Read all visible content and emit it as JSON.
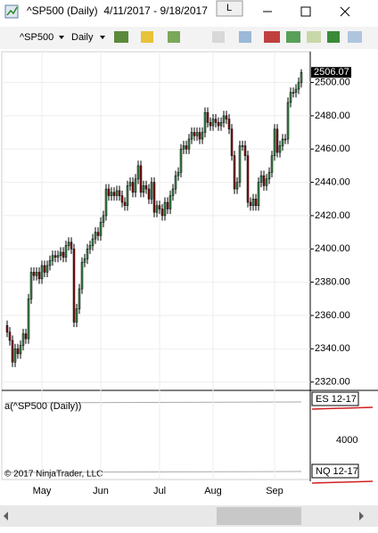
{
  "window": {
    "title": "^SP500 (Daily)  4/11/2017 - 9/18/2017",
    "link_button": "L"
  },
  "toolbar": {
    "instrument": "^SP500",
    "period": "Daily"
  },
  "lower_panel": {
    "indicator_label": "a(^SP500 (Daily))",
    "top_series": "ES 12-17",
    "bottom_series": "NQ 12-17",
    "yticks": [
      4000
    ],
    "copyright": "© 2017 NinjaTrader, LLC"
  },
  "chart_data": {
    "type": "candlestick",
    "up_color": "#3c8c4c",
    "down_color": "#8b1010",
    "grid": true,
    "categories": [
      null,
      null,
      null,
      null,
      null,
      null,
      null,
      null,
      null,
      null,
      null,
      null,
      null,
      "May",
      null,
      null,
      null,
      null,
      null,
      null,
      null,
      null,
      null,
      null,
      null,
      null,
      null,
      null,
      null,
      null,
      null,
      null,
      null,
      null,
      null,
      "Jun",
      null,
      null,
      null,
      null,
      null,
      null,
      null,
      null,
      null,
      null,
      null,
      null,
      null,
      null,
      null,
      null,
      null,
      null,
      null,
      null,
      null,
      "Jul",
      null,
      null,
      null,
      null,
      null,
      null,
      null,
      null,
      null,
      null,
      null,
      null,
      null,
      null,
      null,
      null,
      null,
      null,
      null,
      "Aug",
      null,
      null,
      null,
      null,
      null,
      null,
      null,
      null,
      null,
      null,
      null,
      null,
      null,
      null,
      null,
      null,
      null,
      null,
      null,
      null,
      null,
      null,
      "Sep",
      null,
      null,
      null,
      null,
      null,
      null,
      null,
      null,
      null,
      null
    ],
    "open": [
      2354,
      2350,
      2345,
      2332,
      2340,
      2337,
      2342,
      2349,
      2346,
      2370,
      2386,
      2384,
      2386,
      2382,
      2390,
      2386,
      2390,
      2393,
      2396,
      2395,
      2396,
      2398,
      2395,
      2402,
      2404,
      2400,
      2356,
      2364,
      2376,
      2392,
      2394,
      2400,
      2402,
      2406,
      2410,
      2408,
      2416,
      2420,
      2436,
      2432,
      2434,
      2432,
      2435,
      2432,
      2428,
      2426,
      2438,
      2440,
      2434,
      2442,
      2450,
      2434,
      2438,
      2436,
      2430,
      2440,
      2422,
      2426,
      2424,
      2420,
      2428,
      2424,
      2432,
      2436,
      2444,
      2446,
      2460,
      2462,
      2460,
      2466,
      2470,
      2468,
      2470,
      2466,
      2470,
      2482,
      2476,
      2474,
      2478,
      2476,
      2474,
      2476,
      2480,
      2478,
      2472,
      2456,
      2436,
      2440,
      2462,
      2462,
      2456,
      2428,
      2426,
      2430,
      2426,
      2440,
      2444,
      2438,
      2442,
      2446,
      2456,
      2472,
      2458,
      2462,
      2466,
      2466,
      2488,
      2494,
      2494,
      2496,
      2500
    ],
    "high": [
      2357,
      2353,
      2348,
      2343,
      2343,
      2345,
      2352,
      2352,
      2373,
      2389,
      2389,
      2389,
      2389,
      2393,
      2393,
      2393,
      2396,
      2399,
      2399,
      2399,
      2401,
      2401,
      2405,
      2407,
      2407,
      2403,
      2367,
      2379,
      2395,
      2397,
      2403,
      2405,
      2409,
      2413,
      2413,
      2419,
      2423,
      2439,
      2439,
      2437,
      2437,
      2438,
      2438,
      2435,
      2431,
      2441,
      2443,
      2443,
      2445,
      2453,
      2453,
      2441,
      2441,
      2439,
      2443,
      2443,
      2429,
      2429,
      2427,
      2431,
      2431,
      2435,
      2439,
      2447,
      2449,
      2463,
      2465,
      2465,
      2469,
      2473,
      2473,
      2473,
      2473,
      2473,
      2485,
      2485,
      2479,
      2481,
      2481,
      2479,
      2479,
      2483,
      2483,
      2481,
      2475,
      2459,
      2443,
      2465,
      2465,
      2465,
      2459,
      2431,
      2433,
      2433,
      2443,
      2447,
      2447,
      2445,
      2449,
      2459,
      2475,
      2475,
      2465,
      2469,
      2469,
      2491,
      2497,
      2497,
      2499,
      2503,
      2508
    ],
    "low": [
      2347,
      2342,
      2329,
      2329,
      2334,
      2334,
      2339,
      2343,
      2343,
      2367,
      2381,
      2381,
      2379,
      2379,
      2383,
      2383,
      2387,
      2390,
      2392,
      2392,
      2393,
      2392,
      2392,
      2399,
      2397,
      2353,
      2353,
      2361,
      2373,
      2389,
      2391,
      2397,
      2399,
      2403,
      2405,
      2405,
      2413,
      2417,
      2429,
      2429,
      2429,
      2429,
      2429,
      2425,
      2423,
      2423,
      2435,
      2431,
      2431,
      2439,
      2431,
      2431,
      2433,
      2427,
      2427,
      2419,
      2419,
      2421,
      2417,
      2417,
      2421,
      2421,
      2429,
      2433,
      2441,
      2443,
      2457,
      2457,
      2457,
      2463,
      2465,
      2465,
      2463,
      2463,
      2467,
      2473,
      2471,
      2471,
      2473,
      2471,
      2471,
      2473,
      2475,
      2469,
      2453,
      2433,
      2433,
      2437,
      2459,
      2453,
      2425,
      2423,
      2423,
      2423,
      2423,
      2437,
      2435,
      2435,
      2439,
      2443,
      2453,
      2455,
      2455,
      2459,
      2463,
      2463,
      2485,
      2491,
      2491,
      2493,
      2497
    ],
    "close": [
      2350,
      2345,
      2332,
      2340,
      2337,
      2342,
      2349,
      2346,
      2370,
      2386,
      2384,
      2386,
      2382,
      2390,
      2386,
      2390,
      2393,
      2396,
      2395,
      2396,
      2398,
      2395,
      2402,
      2404,
      2400,
      2356,
      2364,
      2376,
      2392,
      2394,
      2400,
      2402,
      2406,
      2410,
      2408,
      2416,
      2420,
      2436,
      2432,
      2434,
      2432,
      2435,
      2432,
      2428,
      2426,
      2438,
      2440,
      2434,
      2442,
      2450,
      2434,
      2438,
      2436,
      2430,
      2440,
      2422,
      2426,
      2424,
      2420,
      2428,
      2424,
      2432,
      2436,
      2444,
      2446,
      2460,
      2462,
      2460,
      2466,
      2470,
      2468,
      2470,
      2466,
      2470,
      2482,
      2476,
      2474,
      2478,
      2476,
      2474,
      2476,
      2480,
      2478,
      2472,
      2456,
      2436,
      2440,
      2462,
      2462,
      2456,
      2428,
      2426,
      2430,
      2426,
      2440,
      2444,
      2438,
      2442,
      2446,
      2456,
      2472,
      2458,
      2462,
      2466,
      2466,
      2488,
      2494,
      2494,
      2496,
      2500,
      2506.07
    ],
    "ylim": [
      2315,
      2518.5
    ],
    "yticks": [
      {
        "value": 2320,
        "label": "2320.00"
      },
      {
        "value": 2340,
        "label": "2340.00"
      },
      {
        "value": 2360,
        "label": "2360.00"
      },
      {
        "value": 2380,
        "label": "2380.00"
      },
      {
        "value": 2400,
        "label": "2400.00"
      },
      {
        "value": 2420,
        "label": "2420.00"
      },
      {
        "value": 2440,
        "label": "2440.00"
      },
      {
        "value": 2460,
        "label": "2460.00"
      },
      {
        "value": 2480,
        "label": "2480.00"
      },
      {
        "value": 2500,
        "label": "2500.00"
      }
    ]
  }
}
